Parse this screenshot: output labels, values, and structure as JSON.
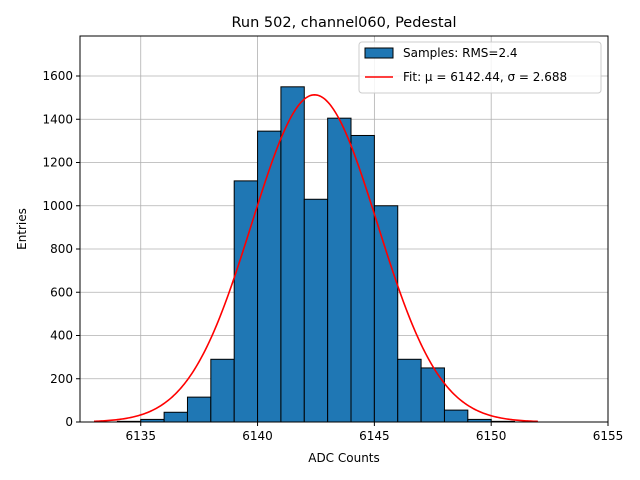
{
  "chart_data": {
    "type": "bar",
    "title": "Run 502, channel060, Pedestal",
    "xlabel": "ADC Counts",
    "ylabel": "Entries",
    "xlim": [
      132.4,
      155
    ],
    "ylim": [
      0,
      1785
    ],
    "xticks": [
      135,
      140,
      145,
      150,
      155
    ],
    "xtick_labels": [
      "6135",
      "6140",
      "6145",
      "6150",
      "6155"
    ],
    "yticks": [
      0,
      200,
      400,
      600,
      800,
      1000,
      1200,
      1400,
      1600
    ],
    "grid": true,
    "bar_color": "#1f77b4",
    "fit_color": "#ff0000",
    "histogram": {
      "name": "Samples: RMS=2.4",
      "bin_width": 1,
      "bin_left_edges": [
        134,
        135,
        136,
        137,
        138,
        139,
        140,
        141,
        142,
        143,
        144,
        145,
        146,
        147,
        148,
        149,
        150
      ],
      "counts": [
        3,
        12,
        45,
        115,
        290,
        1115,
        1345,
        1550,
        1030,
        1405,
        1325,
        1000,
        290,
        250,
        55,
        12,
        3
      ]
    },
    "fit": {
      "name": "Fit: μ = 6142.44, σ = 2.688",
      "mu": 142.44,
      "sigma": 2.688,
      "amplitude": 1513,
      "x_range": [
        133,
        152
      ]
    },
    "legend_position": "top-right"
  }
}
